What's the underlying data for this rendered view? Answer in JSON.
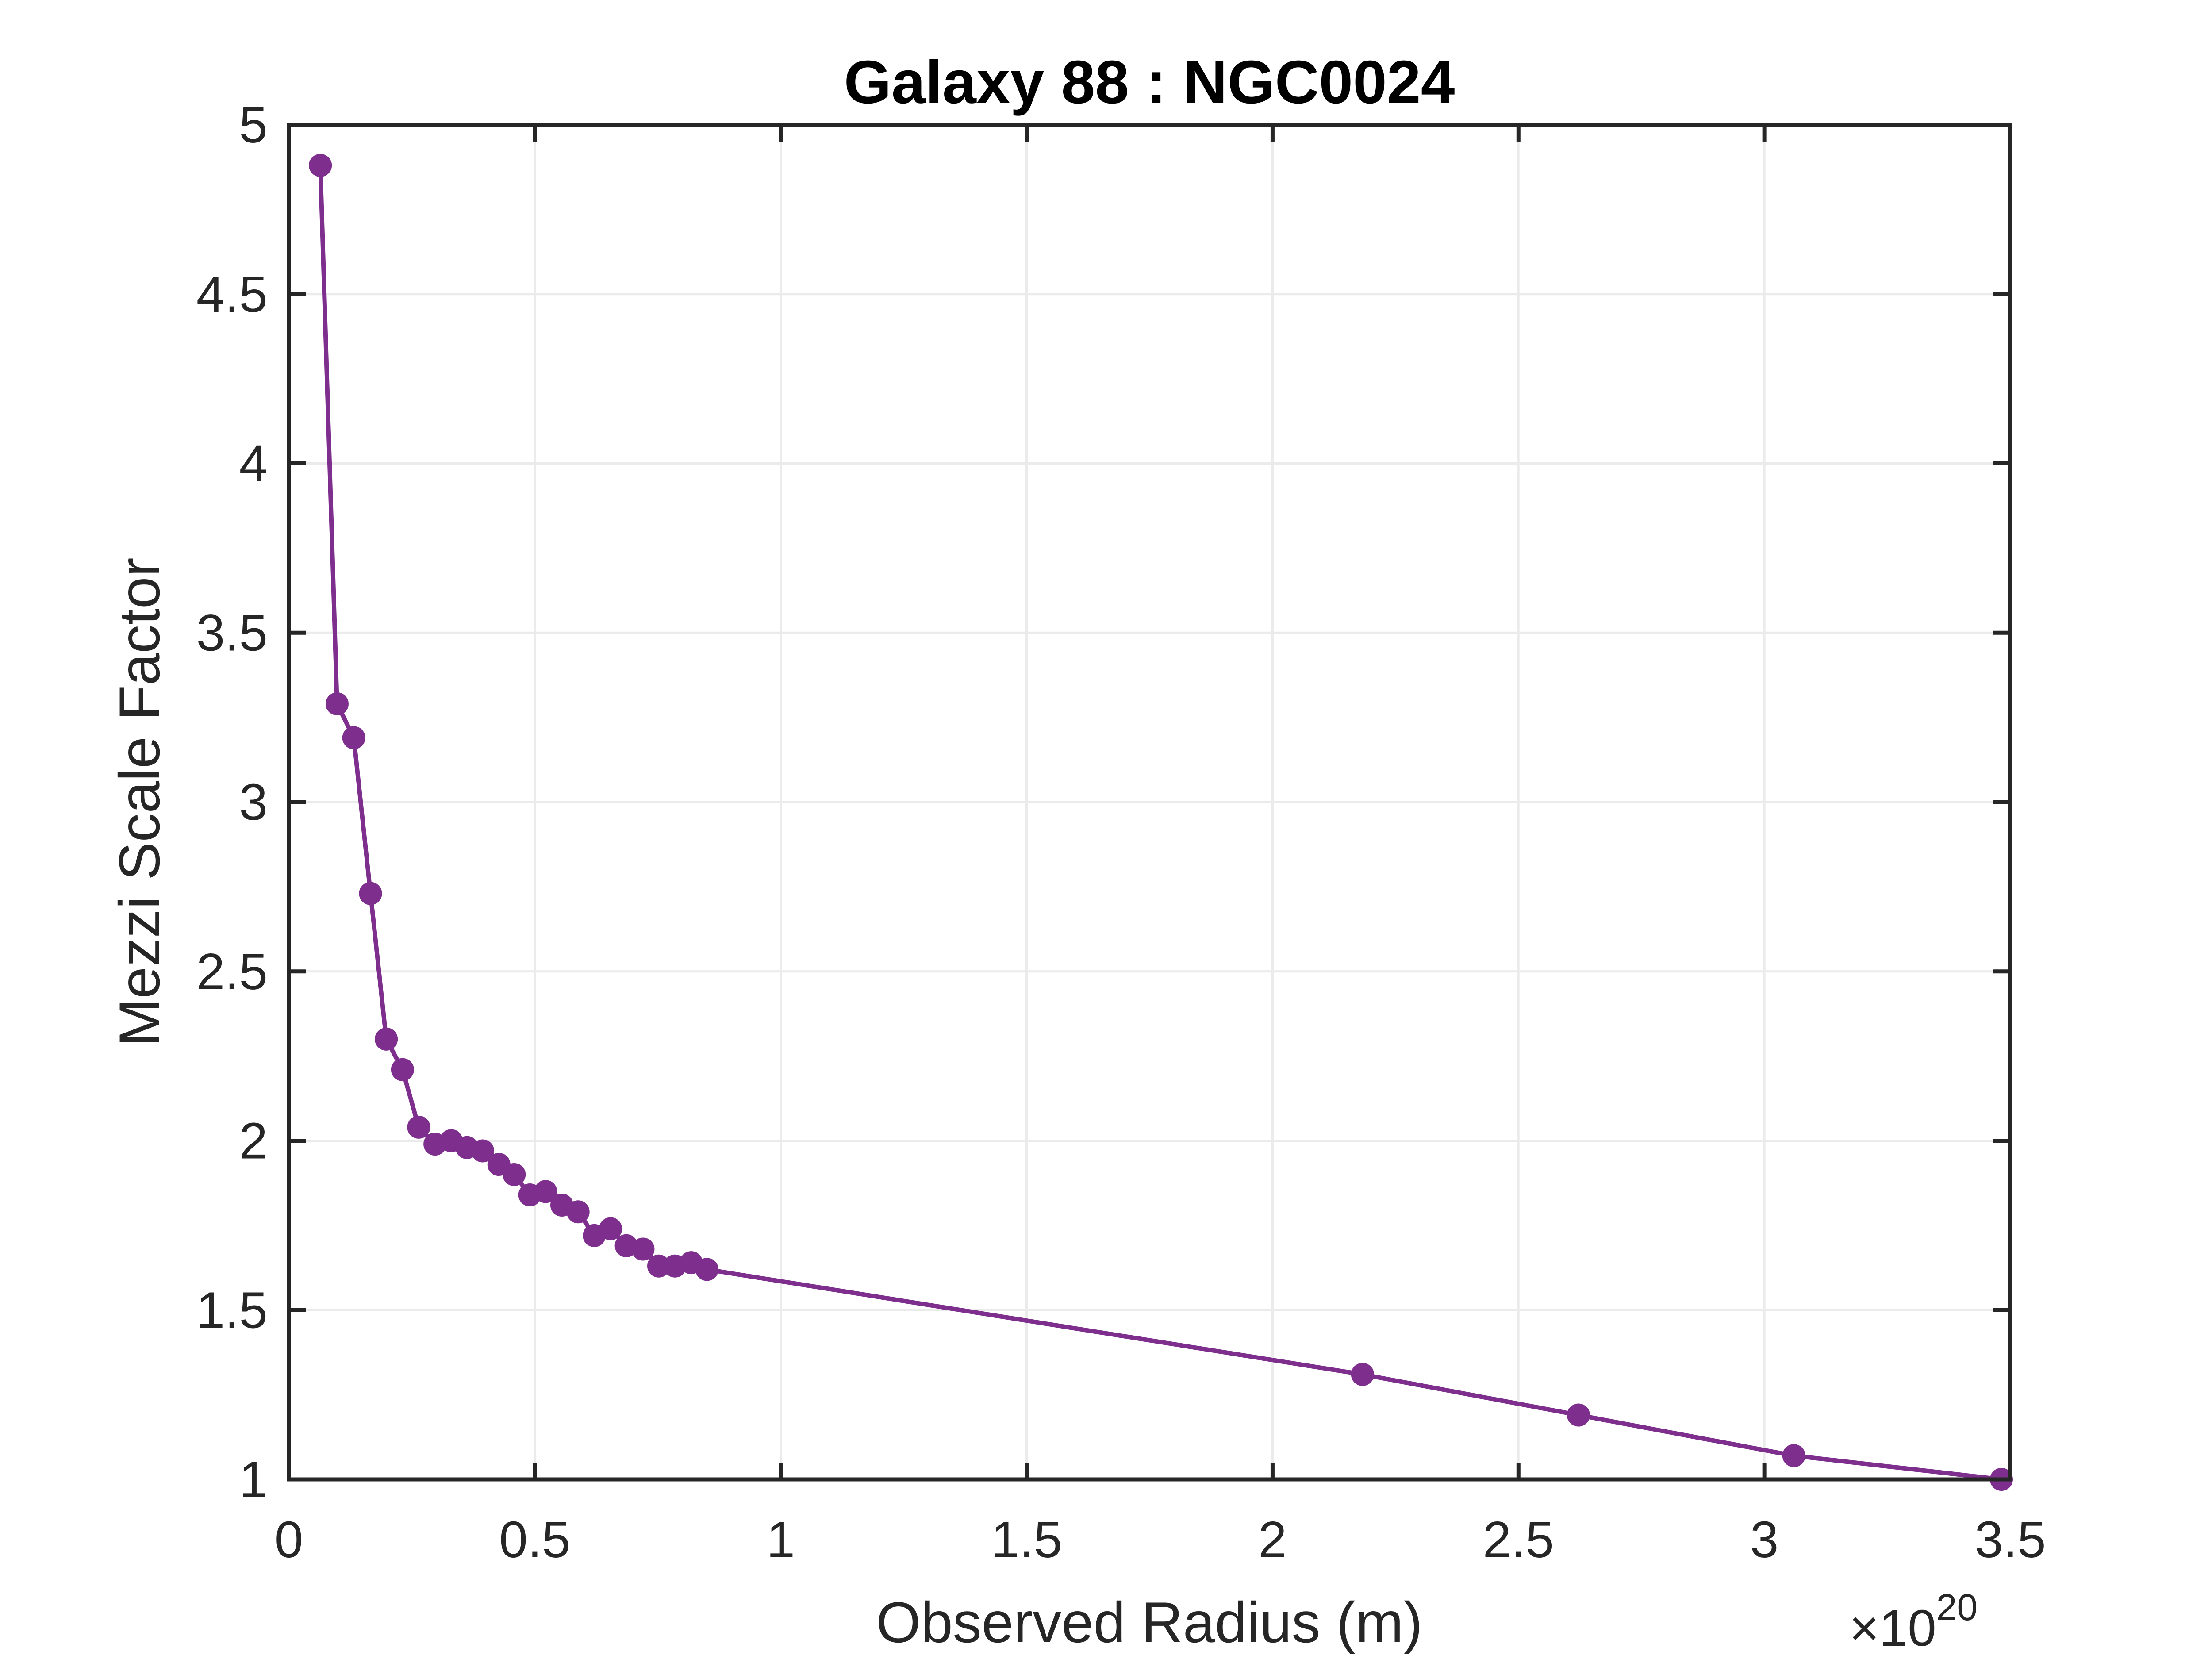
{
  "chart_data": {
    "type": "line",
    "title": "Galaxy 88 : NGC0024",
    "xlabel": "Observed Radius (m)",
    "ylabel": "Mezzi Scale Factor",
    "x_exponent_prefix": "×10",
    "x_exponent_power": "20",
    "xlim": [
      0,
      3.5
    ],
    "ylim": [
      1,
      5
    ],
    "x_ticks": [
      0,
      0.5,
      1,
      1.5,
      2,
      2.5,
      3,
      3.5
    ],
    "x_tick_labels": [
      "0",
      "0.5",
      "1",
      "1.5",
      "2",
      "2.5",
      "3",
      "3.5"
    ],
    "y_ticks": [
      1,
      1.5,
      2,
      2.5,
      3,
      3.5,
      4,
      4.5,
      5
    ],
    "y_tick_labels": [
      "1",
      "1.5",
      "2",
      "2.5",
      "3",
      "3.5",
      "4",
      "4.5",
      "5"
    ],
    "grid": true,
    "legend": "none",
    "colors": {
      "series": "#7e2f8e",
      "axes": "#262626",
      "grid": "#ebebeb"
    },
    "series": [
      {
        "marker": "circle",
        "x": [
          0.064,
          0.098,
          0.132,
          0.166,
          0.198,
          0.231,
          0.264,
          0.297,
          0.33,
          0.362,
          0.394,
          0.427,
          0.458,
          0.49,
          0.522,
          0.555,
          0.588,
          0.621,
          0.654,
          0.686,
          0.72,
          0.752,
          0.785,
          0.818,
          0.85,
          2.183,
          2.622,
          3.06,
          3.482
        ],
        "y": [
          4.88,
          3.29,
          3.19,
          2.73,
          2.3,
          2.21,
          2.04,
          1.99,
          2.0,
          1.98,
          1.97,
          1.93,
          1.9,
          1.84,
          1.85,
          1.81,
          1.79,
          1.72,
          1.74,
          1.69,
          1.68,
          1.63,
          1.63,
          1.64,
          1.62,
          1.31,
          1.19,
          1.07,
          1.0
        ]
      }
    ]
  }
}
